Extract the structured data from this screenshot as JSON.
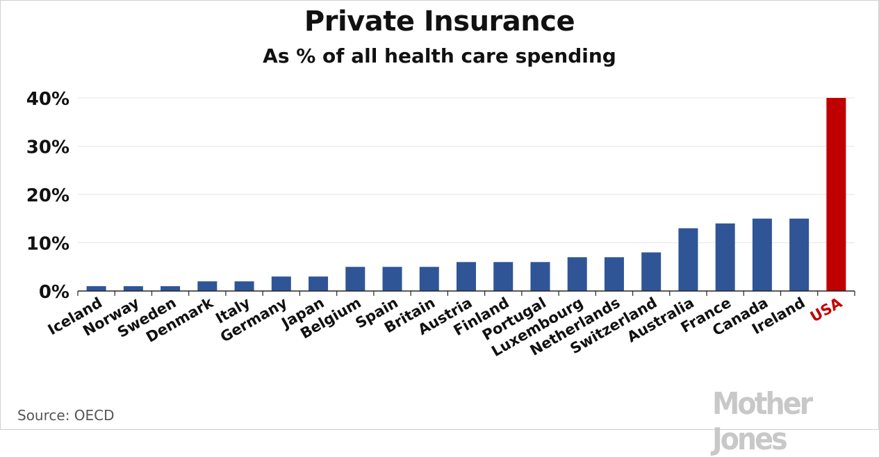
{
  "title": "Private Insurance",
  "subtitle": "As % of all health care spending",
  "source": "Source:  OECD",
  "logo": "Mother Jones",
  "colors": {
    "bar": "#2f5597",
    "highlight": "#c00000",
    "grid": "#e6e6e6",
    "axis": "#222222"
  },
  "chart_data": {
    "type": "bar",
    "categories": [
      "Iceland",
      "Norway",
      "Sweden",
      "Denmark",
      "Italy",
      "Germany",
      "Japan",
      "Belgium",
      "Spain",
      "Britain",
      "Austria",
      "Finland",
      "Portugal",
      "Luxembourg",
      "Netherlands",
      "Switzerland",
      "Australia",
      "France",
      "Canada",
      "Ireland",
      "USA"
    ],
    "values": [
      1,
      1,
      1,
      2,
      2,
      3,
      3,
      5,
      5,
      5,
      6,
      6,
      6,
      7,
      7,
      8,
      13,
      14,
      15,
      15,
      40
    ],
    "highlight": "USA",
    "ylim": [
      0,
      40
    ],
    "yticks": [
      0,
      10,
      20,
      30,
      40
    ],
    "ytick_labels": [
      "0%",
      "10%",
      "20%",
      "30%",
      "40%"
    ],
    "grid": true
  }
}
